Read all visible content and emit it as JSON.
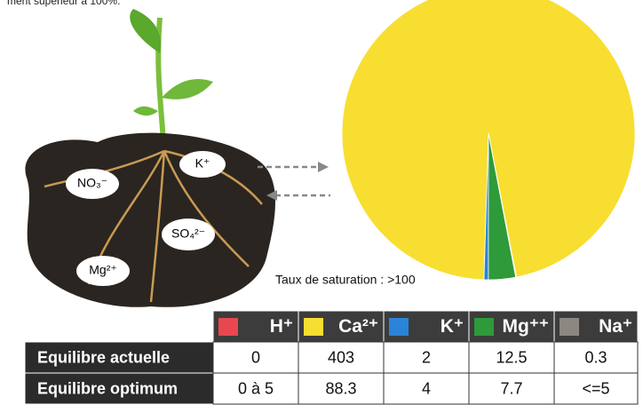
{
  "intro_text": "ment supérieur à 100%.",
  "soil_labels": [
    "NO₃⁻",
    "K⁺",
    "SO₄²⁻",
    "Mg²⁺"
  ],
  "saturation_label": "Taux de saturation : >100",
  "pie": {
    "type": "pie",
    "start_angle": 169,
    "direction": "counterclockwise",
    "source_row": 0
  },
  "table": {
    "columns": [
      {
        "name": "H⁺",
        "color": "#e8474f"
      },
      {
        "name": "Ca²⁺",
        "color": "#f8de30"
      },
      {
        "name": "K⁺",
        "color": "#2a84d8"
      },
      {
        "name": "Mg⁺⁺",
        "color": "#2f9a3a"
      },
      {
        "name": "Na⁺",
        "color": "#8c8782"
      }
    ],
    "rows": [
      {
        "label": "Equilibre actuelle",
        "values": [
          0,
          403,
          2,
          12.5,
          0.3
        ]
      },
      {
        "label": "Equilibre optimum",
        "values": [
          "0 à 5",
          88.3,
          4,
          7.7,
          "<=5"
        ]
      }
    ]
  }
}
